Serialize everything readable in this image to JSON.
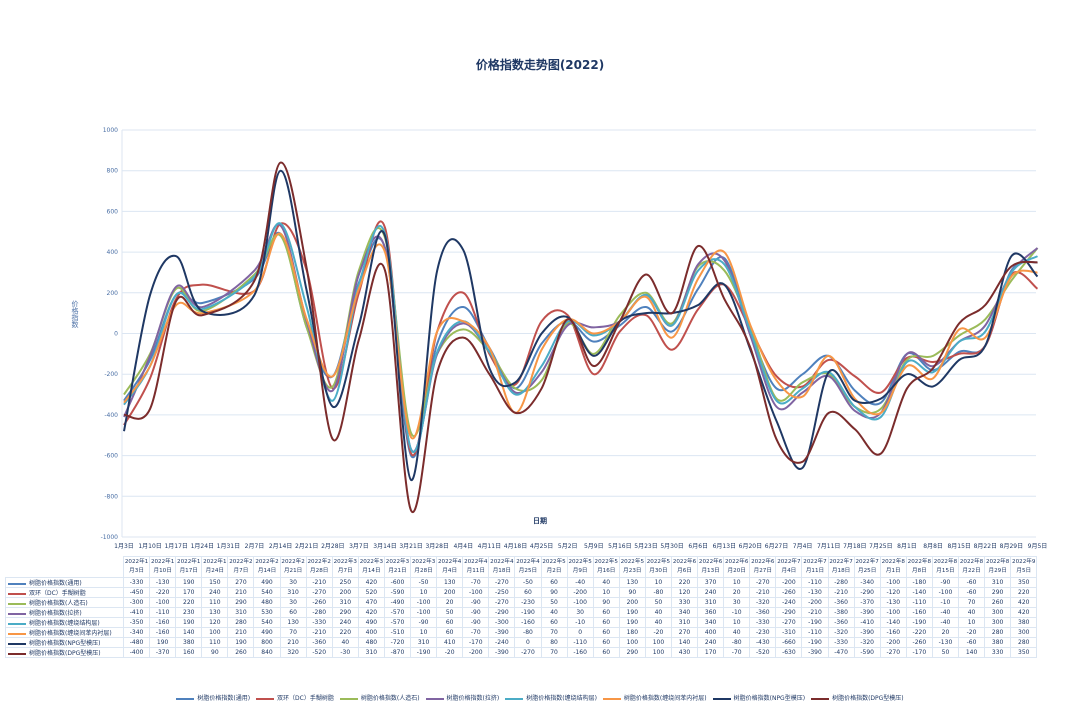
{
  "chart_data": {
    "type": "line",
    "title": "价格指数走势图(2022)",
    "xlabel": "日期",
    "ylabel": "价格指数",
    "ylim": [
      -1000,
      1000
    ],
    "yticks": [
      1000,
      800,
      600,
      400,
      200,
      0,
      -200,
      -400,
      -600,
      -800,
      -1000
    ],
    "grid": true,
    "legend_position": "bottom",
    "axis_dates": [
      "1月3日",
      "1月10日",
      "1月17日",
      "1月24日",
      "1月31日",
      "2月7日",
      "2月14日",
      "2月21日",
      "2月28日",
      "3月7日",
      "3月14日",
      "3月21日",
      "3月28日",
      "4月4日",
      "4月11日",
      "4月18日",
      "4月25日",
      "5月2日",
      "5月9日",
      "5月16日",
      "5月23日",
      "5月30日",
      "6月6日",
      "6月13日",
      "6月20日",
      "6月27日",
      "7月4日",
      "7月11日",
      "7月18日",
      "7月25日",
      "8月1日",
      "8月8日",
      "8月15日",
      "8月22日",
      "8月29日",
      "9月5日"
    ],
    "categories": [
      "2022年1月3日",
      "2022年1月10日",
      "2022年1月17日",
      "2022年1月24日",
      "2022年2月7日",
      "2022年2月14日",
      "2022年2月21日",
      "2022年2月28日",
      "2022年3月7日",
      "2022年3月14日",
      "2022年3月21日",
      "2022年3月28日",
      "2022年4月4日",
      "2022年4月11日",
      "2022年4月18日",
      "2022年4月25日",
      "2022年5月2日",
      "2022年5月9日",
      "2022年5月16日",
      "2022年5月23日",
      "2022年5月30日",
      "2022年6月6日",
      "2022年6月13日",
      "2022年6月20日",
      "2022年6月27日",
      "2022年7月4日",
      "2022年7月11日",
      "2022年7月18日",
      "2022年7月25日",
      "2022年8月1日",
      "2022年8月8日",
      "2022年8月15日",
      "2022年8月22日",
      "2022年8月29日",
      "2022年9月5日"
    ],
    "category_axis_index": [
      0,
      1,
      2,
      3,
      5,
      6,
      7,
      8,
      9,
      10,
      11,
      12,
      13,
      14,
      15,
      16,
      17,
      18,
      19,
      20,
      21,
      22,
      23,
      24,
      25,
      26,
      27,
      28,
      29,
      30,
      31,
      32,
      33,
      34,
      35
    ],
    "series": [
      {
        "name": "树脂价格指数(通用)",
        "color": "#4f81bd",
        "values": [
          -330,
          -130,
          190,
          150,
          270,
          490,
          30,
          -210,
          250,
          420,
          -600,
          -50,
          130,
          -70,
          -270,
          -50,
          60,
          -40,
          40,
          130,
          10,
          220,
          370,
          10,
          -270,
          -200,
          -110,
          -280,
          -340,
          -100,
          -180,
          -90,
          -60,
          310,
          350
        ]
      },
      {
        "name": "双环（DC）手糊树脂",
        "color": "#c0504d",
        "values": [
          -450,
          -220,
          170,
          240,
          210,
          540,
          310,
          -270,
          200,
          520,
          -590,
          10,
          200,
          -100,
          -250,
          60,
          90,
          -200,
          10,
          90,
          -80,
          120,
          240,
          20,
          -210,
          -260,
          -130,
          -210,
          -290,
          -120,
          -140,
          -100,
          -60,
          290,
          220
        ]
      },
      {
        "name": "树脂价格指数(人造石)",
        "color": "#9bbb59",
        "values": [
          -300,
          -100,
          220,
          110,
          290,
          480,
          30,
          -260,
          310,
          470,
          -490,
          -100,
          20,
          -90,
          -270,
          -230,
          50,
          -100,
          90,
          200,
          50,
          330,
          310,
          30,
          -320,
          -240,
          -200,
          -360,
          -370,
          -130,
          -110,
          -10,
          70,
          260,
          420
        ]
      },
      {
        "name": "树脂价格指数(拉挤)",
        "color": "#8064a2",
        "values": [
          -410,
          -110,
          230,
          130,
          310,
          530,
          60,
          -280,
          290,
          420,
          -570,
          -100,
          50,
          -90,
          -290,
          -190,
          40,
          30,
          60,
          190,
          40,
          340,
          360,
          -10,
          -360,
          -290,
          -210,
          -380,
          -390,
          -100,
          -160,
          -40,
          40,
          300,
          420
        ]
      },
      {
        "name": "树脂价格指数(缠绕结构层)",
        "color": "#4bacc6",
        "values": [
          -350,
          -160,
          190,
          120,
          280,
          540,
          130,
          -330,
          240,
          490,
          -570,
          -90,
          60,
          -90,
          -300,
          -160,
          60,
          -10,
          60,
          190,
          40,
          310,
          340,
          10,
          -330,
          -270,
          -190,
          -360,
          -410,
          -140,
          -190,
          -40,
          10,
          300,
          380
        ]
      },
      {
        "name": "树脂价格指数(缠绕间苯内衬层)",
        "color": "#f79646",
        "values": [
          -340,
          -160,
          140,
          100,
          210,
          490,
          70,
          -210,
          220,
          400,
          -510,
          10,
          60,
          -70,
          -390,
          -80,
          70,
          0,
          60,
          180,
          -20,
          270,
          400,
          40,
          -230,
          -310,
          -110,
          -320,
          -390,
          -160,
          -220,
          20,
          -20,
          280,
          300
        ]
      },
      {
        "name": "树脂价格指数(NPG型模压)",
        "color": "#1f3864",
        "values": [
          -480,
          190,
          380,
          110,
          190,
          800,
          210,
          -360,
          40,
          480,
          -720,
          310,
          410,
          -170,
          -240,
          0,
          80,
          -110,
          60,
          100,
          100,
          140,
          240,
          -80,
          -430,
          -660,
          -190,
          -330,
          -320,
          -200,
          -260,
          -130,
          -60,
          380,
          280
        ]
      },
      {
        "name": "树脂价格指数(DPG型模压)",
        "color": "#7b2c2c",
        "values": [
          -400,
          -370,
          160,
          90,
          260,
          840,
          320,
          -520,
          -30,
          310,
          -870,
          -190,
          -20,
          -200,
          -390,
          -270,
          70,
          -160,
          60,
          290,
          100,
          430,
          170,
          -70,
          -520,
          -630,
          -390,
          -470,
          -590,
          -270,
          -170,
          50,
          140,
          330,
          350
        ]
      }
    ]
  }
}
